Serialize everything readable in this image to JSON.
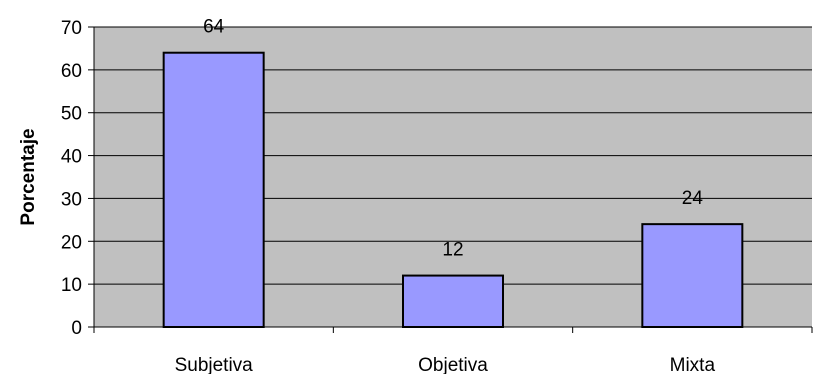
{
  "chart_data": {
    "type": "bar",
    "title": "",
    "xlabel": "",
    "ylabel": "Porcentaje",
    "categories": [
      "Subjetiva",
      "Objetiva",
      "Mixta"
    ],
    "values": [
      64,
      12,
      24
    ],
    "data_labels": [
      "64",
      "12",
      "24"
    ],
    "ylim": [
      0,
      70
    ],
    "yticks": [
      0,
      10,
      20,
      30,
      40,
      50,
      60,
      70
    ],
    "grid": "horizontal",
    "legend": "none",
    "colors": {
      "bar_fill": "#9999ff",
      "bar_stroke": "#000000",
      "plot_background": "#c0c0c0",
      "gridline": "#000000"
    }
  }
}
